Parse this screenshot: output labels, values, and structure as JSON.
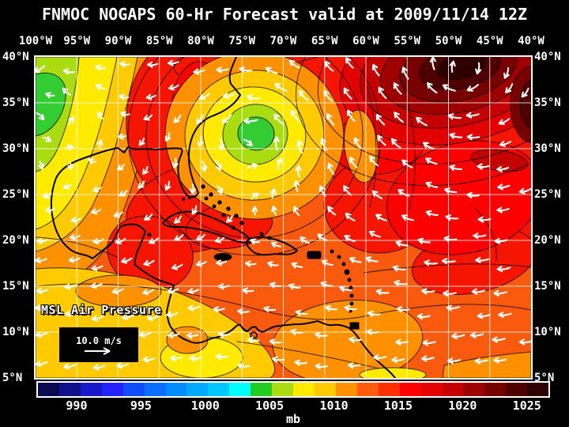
{
  "title": "FNMOC NOGAPS 60-Hr Forecast valid at 2009/11/14 12Z",
  "axes": {
    "lon_labels": [
      "100°W",
      "95°W",
      "90°W",
      "85°W",
      "80°W",
      "75°W",
      "70°W",
      "65°W",
      "60°W",
      "55°W",
      "50°W",
      "45°W",
      "40°W"
    ],
    "lat_labels": [
      "40°N",
      "35°N",
      "30°N",
      "25°N",
      "20°N",
      "15°N",
      "10°N",
      "5°N"
    ]
  },
  "legend": {
    "field_label": "MSL Air Pressure",
    "wind_scale_label": "10.0 m/s"
  },
  "colorbar": {
    "unit": "mb",
    "tick_labels": [
      "990",
      "995",
      "1000",
      "1005",
      "1010",
      "1015",
      "1020",
      "1025"
    ],
    "swatches": [
      "#0A0A50",
      "#10108C",
      "#1818C8",
      "#2222FF",
      "#0F4DFF",
      "#0A6EFF",
      "#008CFF",
      "#00AAFF",
      "#00C8FF",
      "#00FFFF",
      "#22CC22",
      "#AADD11",
      "#FFEA00",
      "#FFCB00",
      "#FF9100",
      "#FF5A0E",
      "#FF3000",
      "#FF0000",
      "#E30000",
      "#C40000",
      "#9E0000",
      "#770000",
      "#4E0000",
      "#2E0000"
    ]
  },
  "chart_data": {
    "type": "heatmap",
    "title": "FNMOC NOGAPS 60-Hr Forecast valid at 2009/11/14 12Z",
    "variable": "MSL Air Pressure",
    "unit": "mb",
    "forecast_hour": 60,
    "valid_time": "2009/11/14 12Z",
    "lon_range": [
      "100°W",
      "40°W"
    ],
    "lat_range": [
      "5°N",
      "40°N"
    ],
    "grid_interval_deg": 5,
    "colorbar_ticks_mb": [
      990,
      995,
      1000,
      1005,
      1010,
      1015,
      1020,
      1025
    ],
    "wind_reference_vector_ms": 10.0,
    "features": [
      {
        "type": "low",
        "approx_lon": "74°W",
        "approx_lat": "31°N",
        "approx_center_pressure_mb": 1003
      },
      {
        "type": "low",
        "approx_lon": "99°W",
        "approx_lat": "36°N",
        "approx_center_pressure_mb": 1004
      },
      {
        "type": "high",
        "approx_lon": "49°W",
        "approx_lat": "38°N",
        "approx_center_pressure_mb": 1026
      },
      {
        "type": "flow",
        "region": "southern half",
        "description": "easterly trade winds"
      }
    ],
    "legend_position": "bottom",
    "grid": true
  }
}
